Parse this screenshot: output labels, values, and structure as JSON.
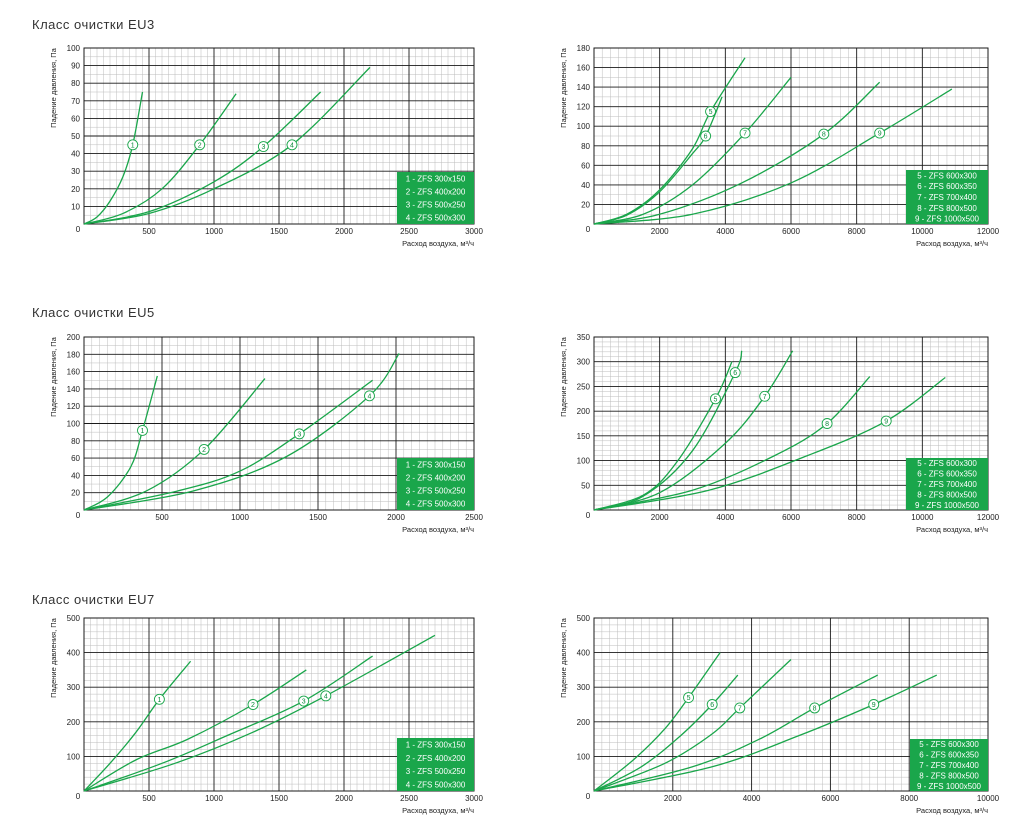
{
  "titles": {
    "eu3": "Класс  очистки  EU3",
    "eu5": "Класс  очистки  EU5",
    "eu7": "Класс  очистки  EU7"
  },
  "colors": {
    "curve": "#1aa64b",
    "legend_bg": "#1aa64b",
    "grid_major": "#1a1a1a",
    "grid_minor": "#bdbdbd"
  },
  "chart_data": [
    {
      "type": "line",
      "ylabel": "Падение давления, Па",
      "xlabel": "Расход воздуха, м³/ч",
      "xlim": [
        0,
        3000
      ],
      "ylim": [
        0,
        100
      ],
      "x_ticks": [
        "500",
        "1000",
        "1500",
        "2000",
        "2500",
        "3000"
      ],
      "y_ticks": [
        "10",
        "20",
        "30",
        "40",
        "50",
        "60",
        "70",
        "80",
        "90",
        "100"
      ],
      "legend": [
        "1 - ZFS 300x150",
        "2 - ZFS 400x200",
        "3 - ZFS 500x250",
        "4 - ZFS 500x300"
      ],
      "series": [
        {
          "name": "1",
          "marker": [
            375,
            45
          ],
          "points": [
            [
              0,
              0
            ],
            [
              100,
              4
            ],
            [
              200,
              13
            ],
            [
              300,
              27
            ],
            [
              375,
              45
            ],
            [
              450,
              75
            ]
          ]
        },
        {
          "name": "2",
          "marker": [
            890,
            45
          ],
          "points": [
            [
              0,
              0
            ],
            [
              300,
              6
            ],
            [
              600,
              20
            ],
            [
              890,
              45
            ],
            [
              1170,
              74
            ]
          ]
        },
        {
          "name": "3",
          "marker": [
            1380,
            44
          ],
          "points": [
            [
              0,
              0
            ],
            [
              500,
              7
            ],
            [
              1000,
              24
            ],
            [
              1380,
              44
            ],
            [
              1820,
              75
            ]
          ]
        },
        {
          "name": "4",
          "marker": [
            1600,
            45
          ],
          "points": [
            [
              0,
              0
            ],
            [
              500,
              6
            ],
            [
              1000,
              20
            ],
            [
              1600,
              45
            ],
            [
              2200,
              89
            ]
          ]
        }
      ]
    },
    {
      "type": "line",
      "ylabel": "Падение давления, Па",
      "xlabel": "Расход воздуха, м³/ч",
      "xlim": [
        0,
        12000
      ],
      "ylim": [
        0,
        180
      ],
      "x_ticks": [
        "2000",
        "4000",
        "6000",
        "8000",
        "10000",
        "12000"
      ],
      "y_ticks": [
        "20",
        "40",
        "60",
        "80",
        "100",
        "120",
        "140",
        "160",
        "180"
      ],
      "legend": [
        "5 - ZFS 600x300",
        "6 - ZFS 600x350",
        "7 - ZFS 700x400",
        "8 - ZFS 800x500",
        "9 - ZFS 1000x500"
      ],
      "series": [
        {
          "name": "5",
          "marker": [
            3550,
            115
          ],
          "points": [
            [
              0,
              0
            ],
            [
              1000,
              10
            ],
            [
              2000,
              35
            ],
            [
              3000,
              77
            ],
            [
              3550,
              115
            ],
            [
              4600,
              170
            ]
          ]
        },
        {
          "name": "6",
          "marker": [
            3400,
            90
          ],
          "points": [
            [
              0,
              0
            ],
            [
              1000,
              9
            ],
            [
              2000,
              33
            ],
            [
              3000,
              72
            ],
            [
              3400,
              90
            ],
            [
              3900,
              130
            ]
          ]
        },
        {
          "name": "7",
          "marker": [
            4600,
            93
          ],
          "points": [
            [
              0,
              0
            ],
            [
              1500,
              10
            ],
            [
              3000,
              40
            ],
            [
              4600,
              93
            ],
            [
              6000,
              150
            ]
          ]
        },
        {
          "name": "8",
          "marker": [
            7000,
            92
          ],
          "points": [
            [
              0,
              0
            ],
            [
              2000,
              10
            ],
            [
              4500,
              42
            ],
            [
              7000,
              92
            ],
            [
              8700,
              145
            ]
          ]
        },
        {
          "name": "9",
          "marker": [
            8700,
            93
          ],
          "points": [
            [
              0,
              0
            ],
            [
              3000,
              10
            ],
            [
              6000,
              42
            ],
            [
              8700,
              93
            ],
            [
              10900,
              138
            ]
          ]
        }
      ]
    },
    {
      "type": "line",
      "ylabel": "Падение давления, Па",
      "xlabel": "Расход воздуха, м³/ч",
      "xlim": [
        0,
        2500
      ],
      "ylim": [
        0,
        200
      ],
      "x_ticks": [
        "500",
        "1000",
        "1500",
        "2000",
        "2500"
      ],
      "y_ticks": [
        "20",
        "40",
        "60",
        "80",
        "100",
        "120",
        "140",
        "160",
        "180",
        "200"
      ],
      "legend": [
        "1 - ZFS 300x150",
        "2 - ZFS 400x200",
        "3 - ZFS 500x250",
        "4 - ZFS 500x300"
      ],
      "series": [
        {
          "name": "1",
          "marker": [
            375,
            92
          ],
          "points": [
            [
              0,
              0
            ],
            [
              150,
              15
            ],
            [
              300,
              50
            ],
            [
              375,
              92
            ],
            [
              470,
              155
            ]
          ]
        },
        {
          "name": "2",
          "marker": [
            770,
            70
          ],
          "points": [
            [
              0,
              0
            ],
            [
              400,
              22
            ],
            [
              770,
              70
            ],
            [
              1160,
              152
            ]
          ]
        },
        {
          "name": "3",
          "marker": [
            1380,
            88
          ],
          "points": [
            [
              0,
              0
            ],
            [
              600,
              22
            ],
            [
              1000,
              45
            ],
            [
              1380,
              88
            ],
            [
              1850,
              150
            ]
          ]
        },
        {
          "name": "4",
          "marker": [
            1830,
            132
          ],
          "points": [
            [
              0,
              0
            ],
            [
              700,
              22
            ],
            [
              1300,
              62
            ],
            [
              1830,
              132
            ],
            [
              2020,
              181
            ]
          ]
        }
      ]
    },
    {
      "type": "line",
      "ylabel": "Падение давления, Па",
      "xlabel": "Расход воздуха, м³/ч",
      "xlim": [
        0,
        12000
      ],
      "ylim": [
        0,
        350
      ],
      "x_ticks": [
        "2000",
        "4000",
        "6000",
        "8000",
        "10000",
        "12000"
      ],
      "y_ticks": [
        "50",
        "100",
        "150",
        "200",
        "250",
        "300",
        "350"
      ],
      "legend": [
        "5 - ZFS 600x300",
        "6 - ZFS 600x350",
        "7 - ZFS 700x400",
        "8 - ZFS 800x500",
        "9 - ZFS 1000x500"
      ],
      "series": [
        {
          "name": "5",
          "marker": [
            3700,
            225
          ],
          "points": [
            [
              0,
              0
            ],
            [
              1500,
              30
            ],
            [
              2500,
              95
            ],
            [
              3700,
              225
            ],
            [
              4200,
              300
            ]
          ]
        },
        {
          "name": "6",
          "marker": [
            4300,
            278
          ],
          "points": [
            [
              0,
              0
            ],
            [
              1500,
              28
            ],
            [
              3000,
              120
            ],
            [
              4300,
              278
            ],
            [
              4500,
              322
            ]
          ]
        },
        {
          "name": "7",
          "marker": [
            5200,
            230
          ],
          "points": [
            [
              0,
              0
            ],
            [
              2000,
              35
            ],
            [
              4000,
              135
            ],
            [
              5200,
              230
            ],
            [
              6050,
              322
            ]
          ]
        },
        {
          "name": "8",
          "marker": [
            7100,
            175
          ],
          "points": [
            [
              0,
              0
            ],
            [
              3000,
              40
            ],
            [
              5500,
              110
            ],
            [
              7100,
              175
            ],
            [
              8400,
              270
            ]
          ]
        },
        {
          "name": "9",
          "marker": [
            8900,
            180
          ],
          "points": [
            [
              0,
              0
            ],
            [
              3500,
              40
            ],
            [
              6500,
              110
            ],
            [
              8900,
              180
            ],
            [
              10700,
              268
            ]
          ]
        }
      ]
    },
    {
      "type": "line",
      "ylabel": "Падение давления, Па",
      "xlabel": "Расход воздуха, м³/ч",
      "xlim": [
        0,
        3000
      ],
      "ylim": [
        0,
        500
      ],
      "x_ticks": [
        "500",
        "1000",
        "1500",
        "2000",
        "2500",
        "3000"
      ],
      "y_ticks": [
        "100",
        "200",
        "300",
        "400",
        "500"
      ],
      "legend": [
        "1 - ZFS 300x150",
        "2 - ZFS 400x200",
        "3 - ZFS 500x250",
        "4 - ZFS 500x300"
      ],
      "series": [
        {
          "name": "1",
          "marker": [
            580,
            265
          ],
          "points": [
            [
              0,
              0
            ],
            [
              200,
              80
            ],
            [
              400,
              170
            ],
            [
              580,
              265
            ],
            [
              820,
              375
            ]
          ]
        },
        {
          "name": "2",
          "marker": [
            1300,
            250
          ],
          "points": [
            [
              0,
              0
            ],
            [
              400,
              90
            ],
            [
              800,
              150
            ],
            [
              1300,
              250
            ],
            [
              1710,
              350
            ]
          ]
        },
        {
          "name": "3",
          "marker": [
            1690,
            260
          ],
          "points": [
            [
              0,
              0
            ],
            [
              600,
              80
            ],
            [
              1100,
              160
            ],
            [
              1690,
              260
            ],
            [
              2220,
              390
            ]
          ]
        },
        {
          "name": "4",
          "marker": [
            1860,
            275
          ],
          "points": [
            [
              0,
              0
            ],
            [
              700,
              80
            ],
            [
              1300,
              170
            ],
            [
              1860,
              275
            ],
            [
              2700,
              450
            ]
          ]
        }
      ]
    },
    {
      "type": "line",
      "ylabel": "Падение давления, Па",
      "xlabel": "Расход воздуха, м³/ч",
      "xlim": [
        0,
        10000
      ],
      "ylim": [
        0,
        500
      ],
      "x_ticks": [
        "2000",
        "4000",
        "6000",
        "8000",
        "10000"
      ],
      "y_ticks": [
        "100",
        "200",
        "300",
        "400",
        "500"
      ],
      "legend": [
        "5 - ZFS 600x300",
        "6 - ZFS 600x350",
        "7 - ZFS 700x400",
        "8 - ZFS 800x500",
        "9 - ZFS 1000x500"
      ],
      "series": [
        {
          "name": "5",
          "marker": [
            2400,
            270
          ],
          "points": [
            [
              0,
              0
            ],
            [
              1000,
              90
            ],
            [
              1800,
              180
            ],
            [
              2400,
              270
            ],
            [
              3200,
              400
            ]
          ]
        },
        {
          "name": "6",
          "marker": [
            3000,
            250
          ],
          "points": [
            [
              0,
              0
            ],
            [
              1200,
              70
            ],
            [
              2200,
              160
            ],
            [
              3000,
              250
            ],
            [
              3650,
              335
            ]
          ]
        },
        {
          "name": "7",
          "marker": [
            3700,
            240
          ],
          "points": [
            [
              0,
              0
            ],
            [
              1800,
              80
            ],
            [
              3000,
              165
            ],
            [
              3700,
              240
            ],
            [
              5000,
              380
            ]
          ]
        },
        {
          "name": "8",
          "marker": [
            5600,
            240
          ],
          "points": [
            [
              0,
              0
            ],
            [
              2500,
              70
            ],
            [
              4200,
              150
            ],
            [
              5600,
              240
            ],
            [
              7200,
              335
            ]
          ]
        },
        {
          "name": "9",
          "marker": [
            7100,
            250
          ],
          "points": [
            [
              0,
              0
            ],
            [
              3000,
              70
            ],
            [
              5200,
              160
            ],
            [
              7100,
              250
            ],
            [
              8700,
              335
            ]
          ]
        }
      ]
    }
  ]
}
